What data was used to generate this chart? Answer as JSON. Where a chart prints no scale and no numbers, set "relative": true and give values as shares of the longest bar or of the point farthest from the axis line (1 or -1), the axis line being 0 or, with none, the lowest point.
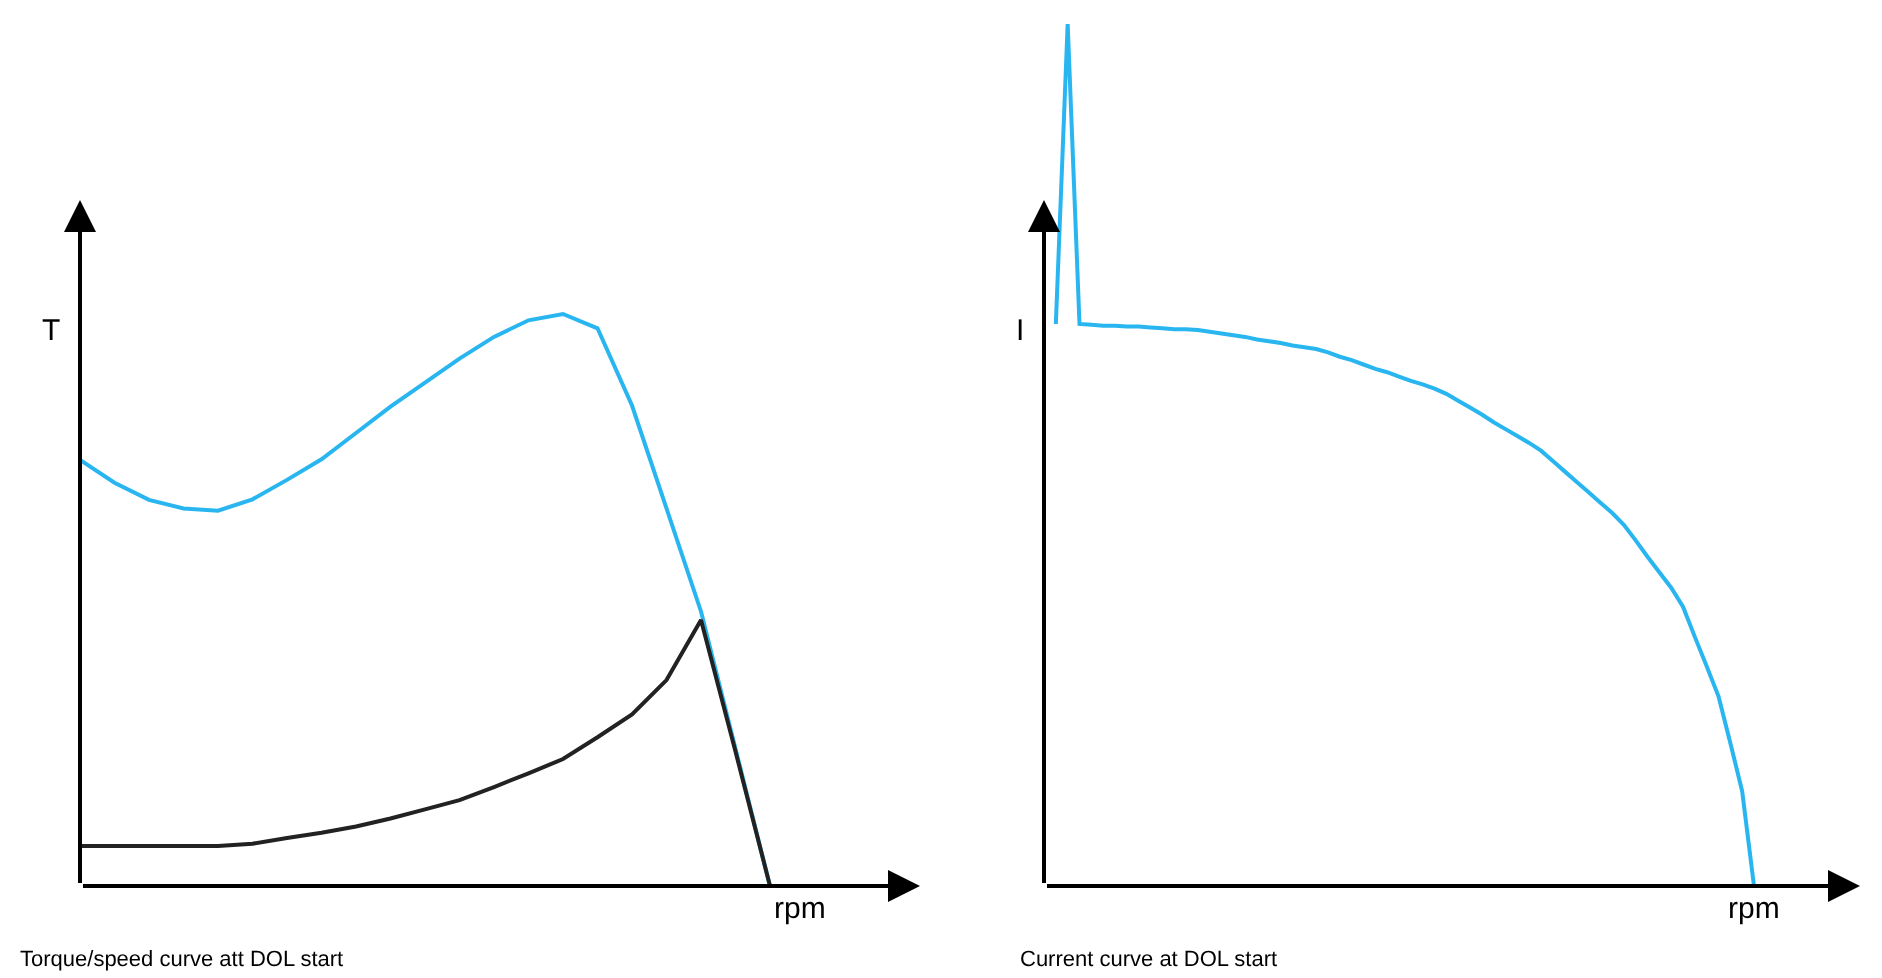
{
  "chart_data": [
    {
      "type": "line",
      "relative": true,
      "xlabel": "rpm",
      "ylabel": "T",
      "annotations": [
        "Torque/speed curve att DOL start"
      ],
      "categories": [
        null,
        null,
        null,
        null,
        null,
        null,
        null,
        null,
        null,
        null,
        null,
        null,
        null,
        null,
        null,
        null,
        null,
        null,
        null,
        null,
        null
      ],
      "series": [
        {
          "color": "#29b6f0",
          "values": [
            0.745,
            0.705,
            0.675,
            0.66,
            0.656,
            0.676,
            0.71,
            0.746,
            0.792,
            0.838,
            0.88,
            0.922,
            0.96,
            0.989,
            1,
            0.975,
            0.84,
            0.66,
            0.48,
            0.24,
            0
          ]
        },
        {
          "color": "#222222",
          "values": [
            0.07,
            0.07,
            0.07,
            0.07,
            0.07,
            0.074,
            0.084,
            0.093,
            0.104,
            0.118,
            0.134,
            0.15,
            0.173,
            0.197,
            0.222,
            0.26,
            0.3,
            0.36,
            0.465,
            0.235,
            0
          ]
        }
      ]
    },
    {
      "type": "line",
      "relative": true,
      "xlabel": "rpm",
      "ylabel": "I",
      "annotations": [
        "Current curve at DOL start"
      ],
      "categories": [
        null,
        null,
        null,
        null,
        null,
        null,
        null,
        null,
        null,
        null,
        null,
        null,
        null,
        null,
        null,
        null,
        null,
        null,
        null,
        null,
        null,
        null,
        null,
        null,
        null,
        null,
        null,
        null,
        null,
        null,
        null,
        null,
        null,
        null,
        null,
        null,
        null,
        null,
        null,
        null,
        null,
        null,
        null,
        null,
        null,
        null,
        null,
        null,
        null,
        null,
        null,
        null,
        null,
        null,
        null,
        null,
        null,
        null,
        null,
        null,
        null
      ],
      "series": [
        {
          "color": "#29b6f0",
          "values": [
            null,
            0.652,
            1,
            0.652,
            0.651,
            0.65,
            0.65,
            0.649,
            0.649,
            0.648,
            0.647,
            0.646,
            0.646,
            0.645,
            0.643,
            0.641,
            0.639,
            0.637,
            0.634,
            0.632,
            0.63,
            0.627,
            0.625,
            0.623,
            0.619,
            0.614,
            0.61,
            0.605,
            0.6,
            0.596,
            0.591,
            0.586,
            0.582,
            0.577,
            0.571,
            0.563,
            0.555,
            0.547,
            0.538,
            0.53,
            0.522,
            0.514,
            0.505,
            0.493,
            0.481,
            0.469,
            0.457,
            0.445,
            0.433,
            0.419,
            0.401,
            0.382,
            0.364,
            0.346,
            0.324,
            0.289,
            0.255,
            0.22,
            0.166,
            0.11,
            0
          ]
        }
      ]
    }
  ]
}
